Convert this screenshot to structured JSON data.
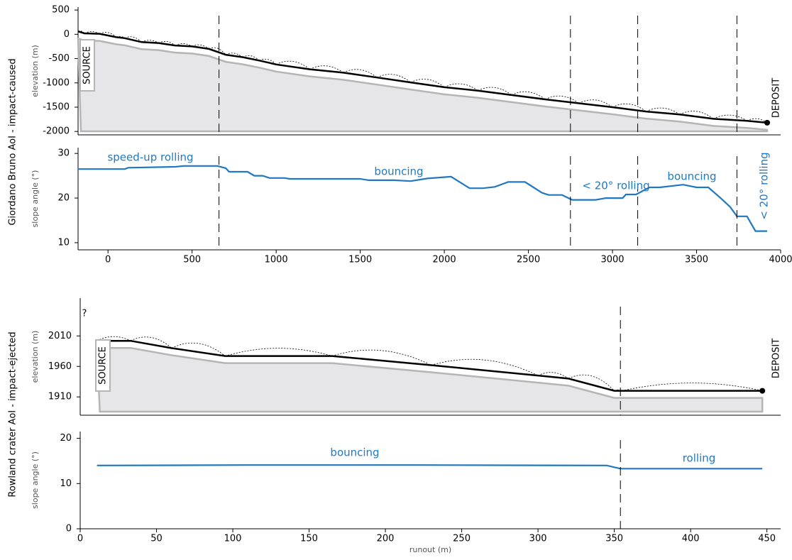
{
  "chart_data": [
    {
      "type": "profile",
      "group_title": "Giordano Bruno AoI  -  impact-caused",
      "ylabel": "elevation (m)",
      "xlim": [
        -178,
        4000
      ],
      "ylim": [
        -2070,
        560
      ],
      "yticks": [
        500,
        0,
        -500,
        -1000,
        -1500,
        -2000
      ],
      "x": [
        -178,
        -140,
        -50,
        50,
        100,
        200,
        300,
        400,
        500,
        600,
        700,
        800,
        900,
        1000,
        1200,
        1400,
        1600,
        1800,
        2000,
        2200,
        2400,
        2600,
        2800,
        3000,
        3200,
        3400,
        3600,
        3800,
        3920
      ],
      "values": [
        60,
        20,
        10,
        -60,
        -80,
        -160,
        -180,
        -230,
        -250,
        -300,
        -420,
        -470,
        -540,
        -620,
        -720,
        -790,
        -890,
        -990,
        -1090,
        -1160,
        -1250,
        -1340,
        -1420,
        -1500,
        -1590,
        -1650,
        -1740,
        -1780,
        -1820
      ],
      "color": "#000000",
      "boundaries": [
        660,
        2750,
        3150,
        3740
      ],
      "annotations": [
        "SOURCE",
        "DEPOSIT"
      ]
    },
    {
      "type": "line",
      "ylabel": "slope angle (°)",
      "xlim": [
        -178,
        4000
      ],
      "ylim": [
        8.4,
        31.3
      ],
      "yticks": [
        30,
        20,
        10
      ],
      "xticks": [
        0,
        500,
        1000,
        1500,
        2000,
        2500,
        3000,
        3500,
        4000
      ],
      "x": [
        -178,
        100,
        120,
        400,
        450,
        650,
        700,
        720,
        830,
        870,
        920,
        960,
        1050,
        1080,
        1200,
        1500,
        1550,
        1700,
        1800,
        1900,
        2040,
        2150,
        2230,
        2300,
        2380,
        2480,
        2580,
        2620,
        2700,
        2760,
        2900,
        2960,
        3060,
        3080,
        3140,
        3220,
        3280,
        3420,
        3500,
        3570,
        3640,
        3700,
        3740,
        3800,
        3850,
        3920
      ],
      "values": [
        26.5,
        26.5,
        26.8,
        27,
        27.2,
        27.2,
        26.7,
        25.9,
        25.9,
        25,
        25,
        24.5,
        24.5,
        24.3,
        24.3,
        24.3,
        24,
        24,
        23.8,
        24.4,
        24.8,
        22.2,
        22.2,
        22.5,
        23.6,
        23.6,
        21.2,
        20.7,
        20.7,
        19.6,
        19.6,
        20,
        20,
        20.8,
        20.8,
        22.4,
        22.4,
        23,
        22.4,
        22.4,
        20.1,
        18,
        15.9,
        15.9,
        12.6,
        12.6
      ],
      "color": "#1f78c1",
      "boundaries": [
        660,
        2750,
        3150,
        3740
      ],
      "annotations": [
        "speed-up rolling",
        "bouncing",
        "< 20° rolling",
        "bouncing",
        "< 20° rolling"
      ]
    },
    {
      "type": "profile",
      "group_title": "Rowland crater AoI  -  impact-ejected",
      "ylabel": "elevation (m)",
      "xlim": [
        0,
        459
      ],
      "ylim": [
        1880,
        2072
      ],
      "yticks": [
        2010,
        1960,
        1910
      ],
      "x": [
        11,
        33,
        60,
        95,
        165,
        230,
        300,
        320,
        350,
        355,
        447
      ],
      "values": [
        2002,
        2002,
        1990,
        1977,
        1977,
        1962,
        1945,
        1940,
        1920,
        1920,
        1920
      ],
      "color": "#000000",
      "boundaries": [
        354
      ],
      "annotations": [
        "SOURCE",
        "DEPOSIT",
        "?"
      ]
    },
    {
      "type": "line",
      "ylabel": "slope angle (°)",
      "xlabel": "runout (m)",
      "xlim": [
        0,
        459
      ],
      "ylim": [
        0,
        21.5
      ],
      "yticks": [
        20,
        10,
        0
      ],
      "xticks": [
        0,
        50,
        100,
        150,
        200,
        250,
        300,
        350,
        400,
        450
      ],
      "x": [
        11,
        110,
        220,
        345,
        354,
        447
      ],
      "values": [
        14,
        14.1,
        14.1,
        14,
        13.3,
        13.3
      ],
      "color": "#1f78c1",
      "boundaries": [
        354
      ],
      "annotations": [
        "bouncing",
        "rolling"
      ]
    }
  ]
}
